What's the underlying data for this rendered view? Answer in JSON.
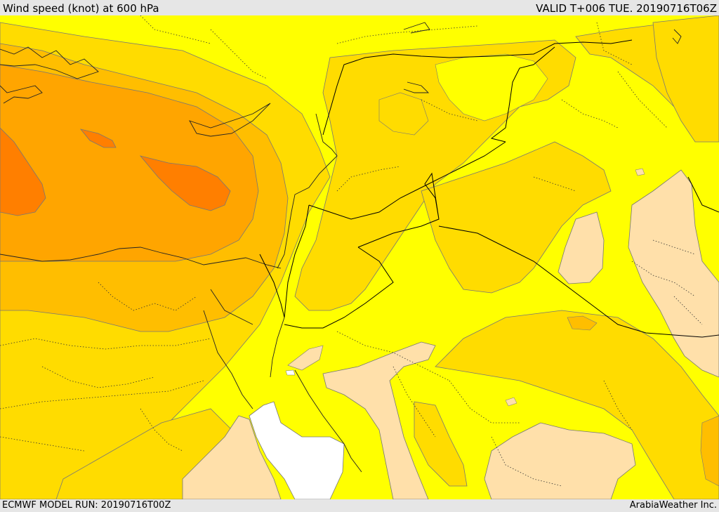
{
  "header": {
    "title": "Wind speed (knot) at 600 hPa",
    "valid": "VALID T+006 TUE. 20190716T06Z"
  },
  "footer": {
    "model_run": "ECMWF MODEL RUN: 20190716T00Z",
    "credit": "ArabiaWeather Inc."
  },
  "colors": {
    "band_lowest": "#ffffff",
    "band_low": "#ffe0aa",
    "band_base": "#ffff00",
    "band_mid": "#ffdc00",
    "band_high": "#ffbe00",
    "band_higher": "#ffa500",
    "band_max": "#ff7f00"
  }
}
